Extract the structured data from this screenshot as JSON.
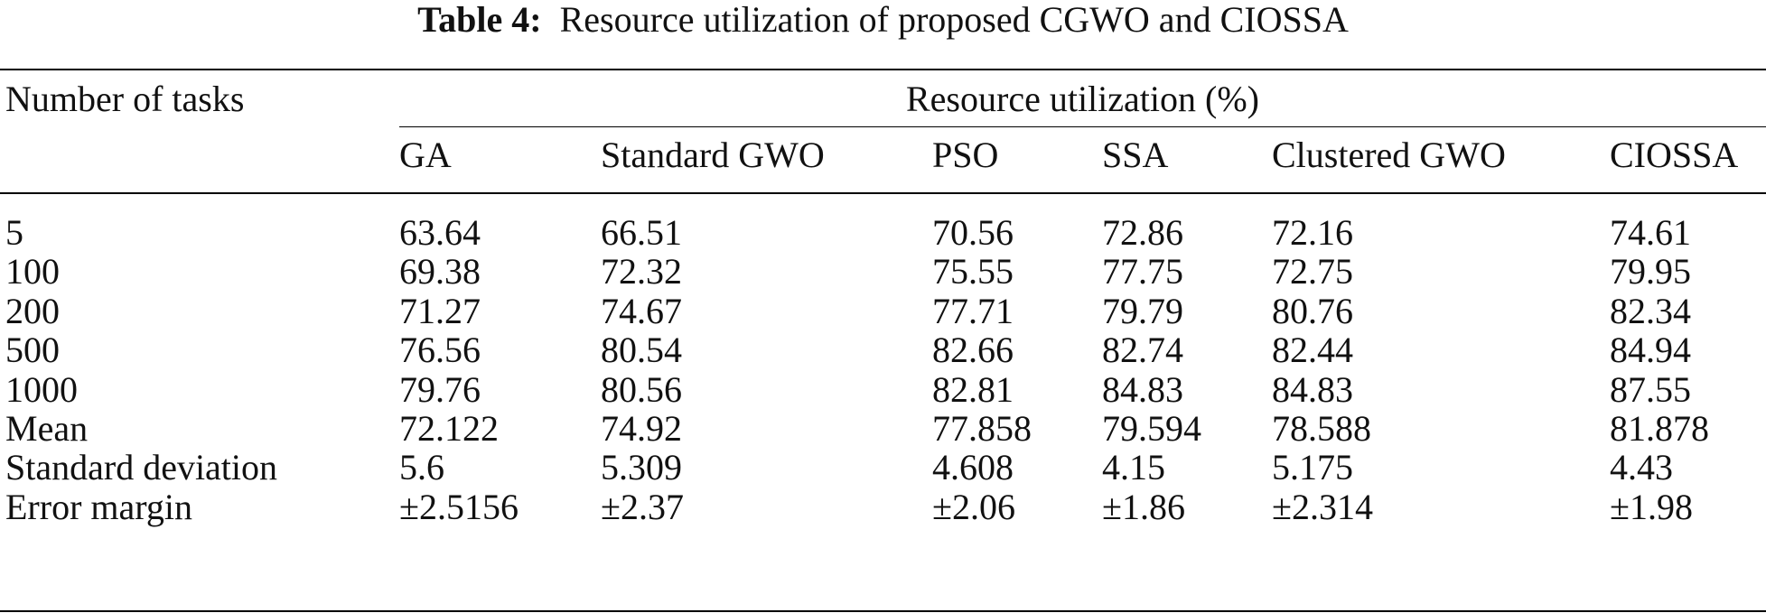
{
  "caption": {
    "label": "Table 4:",
    "text": "Resource utilization of proposed CGWO and CIOSSA"
  },
  "header": {
    "row_label": "Number of tasks",
    "group_label": "Resource utilization (%)",
    "columns": [
      "GA",
      "Standard GWO",
      "PSO",
      "SSA",
      "Clustered GWO",
      "CIOSSA"
    ]
  },
  "rows": [
    {
      "label": "5",
      "values": [
        "63.64",
        "66.51",
        "70.56",
        "72.86",
        "72.16",
        "74.61"
      ]
    },
    {
      "label": "100",
      "values": [
        "69.38",
        "72.32",
        "75.55",
        "77.75",
        "72.75",
        "79.95"
      ]
    },
    {
      "label": "200",
      "values": [
        "71.27",
        "74.67",
        "77.71",
        "79.79",
        "80.76",
        "82.34"
      ]
    },
    {
      "label": "500",
      "values": [
        "76.56",
        "80.54",
        "82.66",
        "82.74",
        "82.44",
        "84.94"
      ]
    },
    {
      "label": "1000",
      "values": [
        "79.76",
        "80.56",
        "82.81",
        "84.83",
        "84.83",
        "87.55"
      ]
    },
    {
      "label": "Mean",
      "values": [
        "72.122",
        "74.92",
        "77.858",
        "79.594",
        "78.588",
        "81.878"
      ]
    },
    {
      "label": "Standard deviation",
      "values": [
        "5.6",
        "5.309",
        "4.608",
        "4.15",
        "5.175",
        "4.43"
      ]
    },
    {
      "label": "Error margin",
      "values": [
        "±2.5156",
        "±2.37",
        "±2.06",
        "±1.86",
        "±2.314",
        "±1.98"
      ]
    }
  ]
}
